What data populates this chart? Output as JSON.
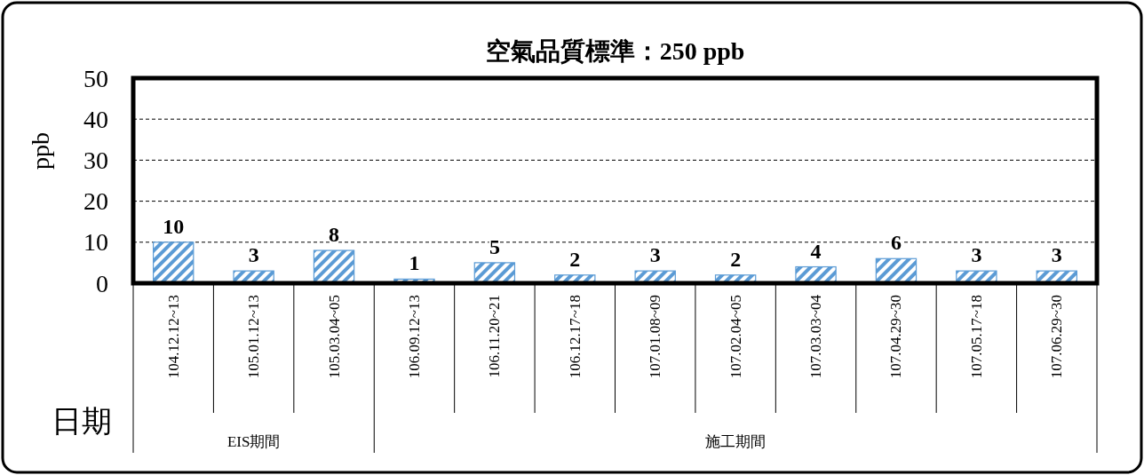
{
  "chart_data": {
    "type": "bar",
    "title": "空氣品質標準：250 ppb",
    "ylabel": "ppb",
    "xlabel": "日期",
    "categories": [
      "104.12.12~13",
      "105.01.12~13",
      "105.03.04~05",
      "106.09.12~13",
      "106.11.20~21",
      "106.12.17~18",
      "107.01.08~09",
      "107.02.04~05",
      "107.03.03~04",
      "107.04.29~30",
      "107.05.17~18",
      "107.06.29~30"
    ],
    "values": [
      10,
      3,
      8,
      1,
      5,
      2,
      3,
      2,
      4,
      6,
      3,
      3
    ],
    "color": "#5b9bd5",
    "data_labels": true,
    "grid": "y",
    "ylim": [
      0,
      50
    ],
    "yticks": [
      0,
      10,
      20,
      30,
      40,
      50
    ],
    "annotations": [
      "EIS期間",
      "施工期間"
    ]
  }
}
